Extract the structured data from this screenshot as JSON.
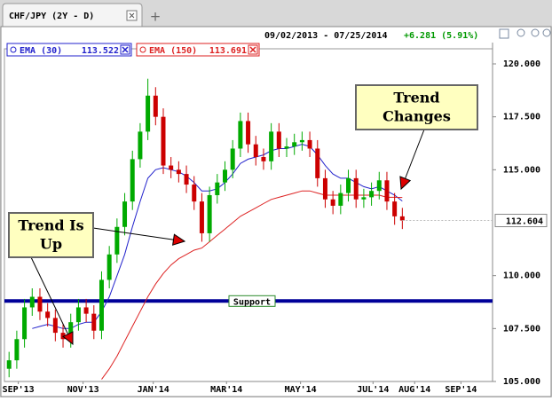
{
  "tab": {
    "title": "CHF/JPY (2Y - D)",
    "add": "+"
  },
  "chart_data": {
    "type": "candlestick",
    "date_range": "09/02/2013 - 07/25/2014",
    "change": "+6.281 (5.91%)",
    "change_color": "#009900",
    "ohlc": {
      "up_color": "#00aa00",
      "down_color": "#cc0000",
      "open": [
        105.6,
        106.0,
        107.0,
        108.5,
        109.0,
        108.3,
        108.0,
        107.3,
        107.0,
        107.8,
        108.5,
        108.2,
        107.4,
        109.8,
        111.0,
        112.3,
        113.5,
        115.5,
        116.8,
        118.5,
        117.5,
        115.2,
        115.0,
        114.8,
        114.3,
        113.5,
        112.0,
        113.8,
        114.4,
        115.0,
        116.0,
        117.3,
        116.2,
        115.6,
        115.4,
        116.8,
        116.0,
        116.1,
        116.3,
        116.4,
        116.0,
        114.6,
        113.6,
        113.3,
        113.9,
        114.6,
        113.6,
        113.7,
        114.0,
        114.5,
        113.5,
        112.8
      ],
      "high": [
        106.4,
        107.4,
        108.9,
        109.4,
        109.4,
        108.7,
        108.4,
        107.7,
        108.2,
        108.9,
        108.9,
        108.6,
        110.2,
        111.4,
        112.7,
        113.9,
        115.9,
        117.2,
        119.3,
        118.9,
        117.9,
        115.6,
        115.4,
        115.2,
        114.7,
        113.9,
        114.2,
        114.8,
        115.4,
        116.4,
        117.7,
        117.7,
        116.6,
        116.0,
        117.2,
        117.2,
        116.5,
        116.7,
        116.8,
        116.8,
        116.4,
        115.0,
        114.0,
        114.3,
        115.0,
        115.0,
        114.1,
        114.4,
        114.9,
        114.9,
        113.9,
        113.2
      ],
      "low": [
        105.2,
        105.6,
        106.6,
        108.1,
        107.9,
        107.6,
        106.9,
        106.6,
        106.6,
        107.4,
        107.8,
        107.0,
        107.0,
        109.4,
        110.6,
        111.9,
        113.1,
        115.1,
        116.4,
        117.1,
        114.8,
        114.6,
        114.4,
        113.9,
        113.1,
        111.6,
        111.6,
        113.4,
        114.0,
        114.6,
        115.6,
        115.8,
        115.2,
        115.0,
        115.0,
        115.6,
        115.6,
        115.7,
        115.9,
        115.6,
        114.2,
        113.2,
        112.9,
        112.9,
        113.5,
        113.2,
        113.2,
        113.3,
        113.6,
        113.1,
        112.4,
        112.2
      ],
      "close": [
        106.0,
        107.0,
        108.5,
        109.0,
        108.3,
        108.0,
        107.3,
        107.0,
        107.8,
        108.5,
        108.2,
        107.4,
        109.8,
        111.0,
        112.3,
        113.5,
        115.5,
        116.8,
        118.5,
        117.5,
        115.2,
        115.0,
        114.8,
        114.3,
        113.5,
        112.0,
        113.8,
        114.4,
        115.0,
        116.0,
        117.3,
        116.2,
        115.6,
        115.4,
        116.8,
        116.0,
        116.1,
        116.3,
        116.4,
        116.0,
        114.6,
        113.6,
        113.3,
        113.9,
        114.6,
        113.6,
        113.7,
        114.0,
        114.5,
        113.5,
        112.8,
        112.604
      ]
    },
    "series": [
      {
        "name": "EMA (30)",
        "color": "#2222cc",
        "values": [
          null,
          null,
          null,
          107.5,
          107.6,
          107.7,
          107.6,
          107.5,
          107.5,
          107.7,
          107.8,
          107.8,
          108.3,
          109.0,
          110.0,
          111.0,
          112.3,
          113.5,
          114.6,
          115.0,
          115.1,
          115.0,
          114.9,
          114.7,
          114.4,
          114.0,
          114.0,
          114.1,
          114.4,
          114.8,
          115.3,
          115.5,
          115.6,
          115.7,
          115.9,
          116.0,
          116.0,
          116.1,
          116.2,
          116.1,
          115.7,
          115.2,
          114.8,
          114.6,
          114.6,
          114.4,
          114.2,
          114.1,
          114.2,
          114.0,
          113.8,
          113.522
        ]
      },
      {
        "name": "EMA (150)",
        "color": "#dd2222",
        "values": [
          null,
          null,
          null,
          null,
          null,
          null,
          null,
          null,
          null,
          null,
          null,
          null,
          105.1,
          105.6,
          106.2,
          106.9,
          107.6,
          108.3,
          109.0,
          109.6,
          110.1,
          110.5,
          110.8,
          111.0,
          111.2,
          111.3,
          111.6,
          111.9,
          112.2,
          112.5,
          112.8,
          113.0,
          113.2,
          113.4,
          113.6,
          113.7,
          113.8,
          113.9,
          114.0,
          114.0,
          113.9,
          113.8,
          113.8,
          113.8,
          113.8,
          113.8,
          113.8,
          113.8,
          113.8,
          113.7,
          113.7,
          113.691
        ]
      }
    ],
    "xlim": [
      -0.6,
      62.7
    ],
    "xticks": [
      {
        "value": 1.2,
        "label": "SEP'13"
      },
      {
        "value": 9.6,
        "label": "NOV'13"
      },
      {
        "value": 18.7,
        "label": "JAN'14"
      },
      {
        "value": 28.2,
        "label": "MAR'14"
      },
      {
        "value": 37.8,
        "label": "MAY'14"
      },
      {
        "value": 47.2,
        "label": "JUL'14"
      },
      {
        "value": 52.6,
        "label": "AUG'14"
      },
      {
        "value": 58.6,
        "label": "SEP'14"
      }
    ],
    "ylim": [
      105,
      120.7
    ],
    "yticks": [
      {
        "value": 105,
        "label": "105.000"
      },
      {
        "value": 107.5,
        "label": "107.500"
      },
      {
        "value": 110,
        "label": "110.000"
      },
      {
        "value": 115,
        "label": "115.000"
      },
      {
        "value": 117.5,
        "label": "117.500"
      },
      {
        "value": 120,
        "label": "120.000"
      }
    ],
    "support": {
      "label": "Support",
      "value": 108.8,
      "color": "#000099"
    },
    "annotations": [
      {
        "lines": [
          "Trend Is",
          "Up"
        ]
      },
      {
        "lines": [
          "Trend",
          "Changes"
        ]
      }
    ]
  }
}
